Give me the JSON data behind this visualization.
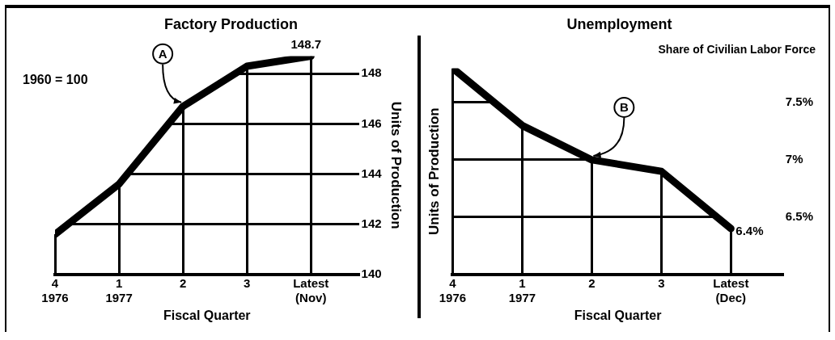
{
  "chart_data": [
    {
      "type": "line",
      "title": "Factory Production",
      "ylabel": "Units of Production",
      "xlabel": "Fiscal Quarter",
      "categories": [
        "4\n1976",
        "1\n1977",
        "2",
        "3",
        "Latest\n(Nov)"
      ],
      "values": [
        141.6,
        143.6,
        146.7,
        148.3,
        148.7
      ],
      "value_labels": [
        null,
        null,
        null,
        null,
        "148.7"
      ],
      "color": "#000000",
      "ylim": [
        140,
        148.7
      ],
      "yticks": [
        140,
        142,
        144,
        146,
        148
      ],
      "grid": true,
      "marker": "none",
      "line_style": "solid",
      "annotations": [
        "1960 = 100",
        {
          "text": "A",
          "x": "2",
          "y": 146.7
        }
      ]
    },
    {
      "type": "line",
      "title": "Unemployment",
      "subtitle": "Share of Civilian Labor Force",
      "ylabel": "Units of Production",
      "xlabel": "Fiscal Quarter",
      "categories": [
        "4\n1976",
        "1\n1977",
        "2",
        "3",
        "Latest\n(Dec)"
      ],
      "values": [
        7.8,
        7.3,
        7.0,
        6.9,
        6.4
      ],
      "value_labels": [
        null,
        null,
        null,
        null,
        "6.4%"
      ],
      "color": "#000000",
      "ylim": [
        6,
        7.8
      ],
      "yticks": [
        {
          "value": 6.5,
          "label": "6.5%"
        },
        {
          "value": 7,
          "label": "7%"
        },
        {
          "value": 7.5,
          "label": "7.5%"
        }
      ],
      "grid": true,
      "marker": "none",
      "line_style": "solid",
      "annotations": [
        {
          "text": "B",
          "x": "2",
          "y": 7.0
        }
      ]
    }
  ]
}
